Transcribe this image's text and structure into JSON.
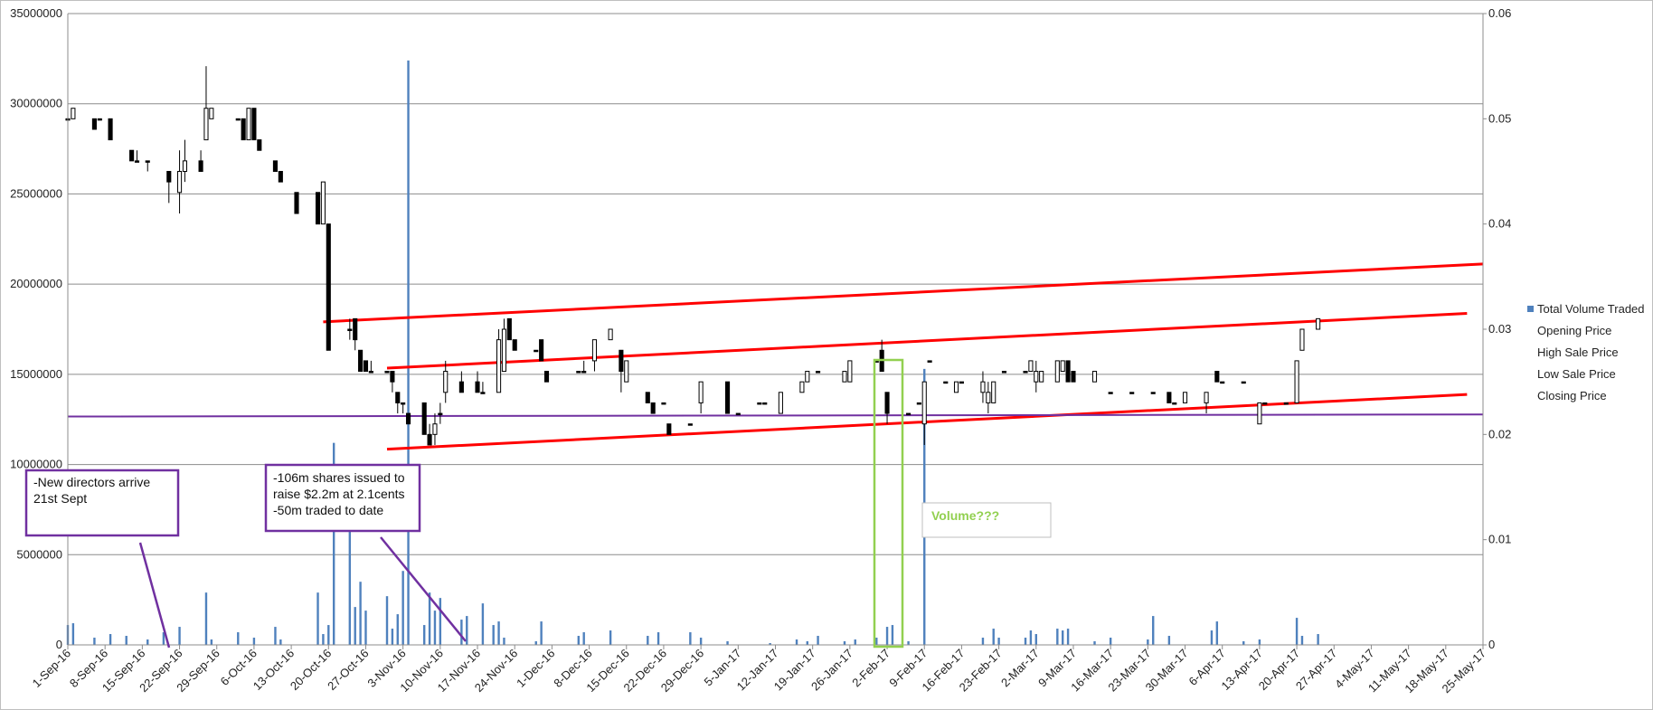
{
  "chart_data": {
    "type": "candlestick",
    "left_axis": {
      "range": [
        0,
        35000000
      ],
      "ticks": [
        "0",
        "5000000",
        "10000000",
        "15000000",
        "20000000",
        "25000000",
        "30000000",
        "35000000"
      ]
    },
    "right_axis": {
      "range": [
        0,
        0.06
      ],
      "ticks": [
        "0",
        "0.01",
        "0.02",
        "0.03",
        "0.04",
        "0.05",
        "0.06"
      ]
    },
    "x_range": [
      "2016-09-01",
      "2017-05-25"
    ],
    "x_tick_labels": [
      "1-Sep-16",
      "8-Sep-16",
      "15-Sep-16",
      "22-Sep-16",
      "29-Sep-16",
      "6-Oct-16",
      "13-Oct-16",
      "20-Oct-16",
      "27-Oct-16",
      "3-Nov-16",
      "10-Nov-16",
      "17-Nov-16",
      "24-Nov-16",
      "1-Dec-16",
      "8-Dec-16",
      "15-Dec-16",
      "22-Dec-16",
      "29-Dec-16",
      "5-Jan-17",
      "12-Jan-17",
      "19-Jan-17",
      "26-Jan-17",
      "2-Feb-17",
      "9-Feb-17",
      "16-Feb-17",
      "23-Feb-17",
      "2-Mar-17",
      "9-Mar-17",
      "16-Mar-17",
      "23-Mar-17",
      "30-Mar-17",
      "6-Apr-17",
      "13-Apr-17",
      "20-Apr-17",
      "27-Apr-17",
      "4-May-17",
      "11-May-17",
      "18-May-17",
      "25-May-17"
    ],
    "grid": true,
    "legend_position": "right",
    "legend": [
      "Total Volume Traded",
      "Opening Price",
      "High Sale Price",
      "Low Sale Price",
      "Closing Price"
    ],
    "colors": {
      "volume": "#4f81bd",
      "trend": "#ff0000",
      "support": "#7030a0",
      "highlight": "#92d050",
      "candle": "#000000"
    },
    "volume": [
      [
        "2016-09-01",
        1100000
      ],
      [
        "2016-09-02",
        1200000
      ],
      [
        "2016-09-06",
        400000
      ],
      [
        "2016-09-09",
        600000
      ],
      [
        "2016-09-12",
        500000
      ],
      [
        "2016-09-16",
        300000
      ],
      [
        "2016-09-19",
        700000
      ],
      [
        "2016-09-22",
        1000000
      ],
      [
        "2016-09-27",
        2900000
      ],
      [
        "2016-09-28",
        300000
      ],
      [
        "2016-10-03",
        700000
      ],
      [
        "2016-10-06",
        400000
      ],
      [
        "2016-10-10",
        1000000
      ],
      [
        "2016-10-11",
        300000
      ],
      [
        "2016-10-18",
        2900000
      ],
      [
        "2016-10-19",
        600000
      ],
      [
        "2016-10-20",
        1100000
      ],
      [
        "2016-10-21",
        11200000
      ],
      [
        "2016-10-24",
        9400000
      ],
      [
        "2016-10-25",
        2100000
      ],
      [
        "2016-10-26",
        3500000
      ],
      [
        "2016-10-27",
        1900000
      ],
      [
        "2016-10-31",
        2700000
      ],
      [
        "2016-11-01",
        900000
      ],
      [
        "2016-11-02",
        1700000
      ],
      [
        "2016-11-03",
        4100000
      ],
      [
        "2016-11-04",
        32400000
      ],
      [
        "2016-11-07",
        1100000
      ],
      [
        "2016-11-08",
        2900000
      ],
      [
        "2016-11-09",
        1900000
      ],
      [
        "2016-11-10",
        2600000
      ],
      [
        "2016-11-14",
        1400000
      ],
      [
        "2016-11-15",
        1600000
      ],
      [
        "2016-11-18",
        2300000
      ],
      [
        "2016-11-20",
        1100000
      ],
      [
        "2016-11-21",
        1300000
      ],
      [
        "2016-11-22",
        400000
      ],
      [
        "2016-11-28",
        200000
      ],
      [
        "2016-11-29",
        1300000
      ],
      [
        "2016-12-06",
        500000
      ],
      [
        "2016-12-07",
        700000
      ],
      [
        "2016-12-12",
        800000
      ],
      [
        "2016-12-19",
        500000
      ],
      [
        "2016-12-21",
        700000
      ],
      [
        "2016-12-27",
        700000
      ],
      [
        "2016-12-29",
        400000
      ],
      [
        "2017-01-03",
        200000
      ],
      [
        "2017-01-11",
        100000
      ],
      [
        "2017-01-16",
        300000
      ],
      [
        "2017-01-18",
        200000
      ],
      [
        "2017-01-20",
        500000
      ],
      [
        "2017-01-25",
        200000
      ],
      [
        "2017-01-27",
        300000
      ],
      [
        "2017-01-31",
        400000
      ],
      [
        "2017-02-02",
        1000000
      ],
      [
        "2017-02-03",
        1100000
      ],
      [
        "2017-02-06",
        200000
      ],
      [
        "2017-02-09",
        15300000
      ],
      [
        "2017-02-20",
        400000
      ],
      [
        "2017-02-22",
        900000
      ],
      [
        "2017-02-23",
        400000
      ],
      [
        "2017-02-28",
        400000
      ],
      [
        "2017-03-01",
        800000
      ],
      [
        "2017-03-02",
        600000
      ],
      [
        "2017-03-06",
        900000
      ],
      [
        "2017-03-07",
        800000
      ],
      [
        "2017-03-08",
        900000
      ],
      [
        "2017-03-13",
        200000
      ],
      [
        "2017-03-16",
        400000
      ],
      [
        "2017-03-23",
        300000
      ],
      [
        "2017-03-24",
        1600000
      ],
      [
        "2017-03-27",
        500000
      ],
      [
        "2017-04-04",
        800000
      ],
      [
        "2017-04-05",
        1300000
      ],
      [
        "2017-04-10",
        200000
      ],
      [
        "2017-04-13",
        300000
      ],
      [
        "2017-04-20",
        1500000
      ],
      [
        "2017-04-21",
        500000
      ],
      [
        "2017-04-24",
        600000
      ]
    ],
    "candles": [
      [
        "2016-09-01",
        0.05,
        0.051,
        0.048,
        0.05
      ],
      [
        "2016-09-02",
        0.05,
        0.051,
        0.05,
        0.051
      ],
      [
        "2016-09-06",
        0.05,
        0.05,
        0.049,
        0.049
      ],
      [
        "2016-09-07",
        0.05,
        0.05,
        0.05,
        0.05
      ],
      [
        "2016-09-09",
        0.05,
        0.05,
        0.048,
        0.048
      ],
      [
        "2016-09-13",
        0.047,
        0.047,
        0.046,
        0.046
      ],
      [
        "2016-09-14",
        0.046,
        0.047,
        0.046,
        0.046
      ],
      [
        "2016-09-16",
        0.046,
        0.046,
        0.045,
        0.046
      ],
      [
        "2016-09-20",
        0.045,
        0.045,
        0.042,
        0.044
      ],
      [
        "2016-09-22",
        0.043,
        0.047,
        0.041,
        0.045
      ],
      [
        "2016-09-23",
        0.045,
        0.048,
        0.044,
        0.046
      ],
      [
        "2016-09-26",
        0.046,
        0.047,
        0.045,
        0.045
      ],
      [
        "2016-09-27",
        0.048,
        0.055,
        0.048,
        0.051
      ],
      [
        "2016-09-28",
        0.05,
        0.051,
        0.05,
        0.051
      ],
      [
        "2016-10-03",
        0.05,
        0.05,
        0.05,
        0.05
      ],
      [
        "2016-10-04",
        0.05,
        0.05,
        0.048,
        0.048
      ],
      [
        "2016-10-05",
        0.048,
        0.051,
        0.048,
        0.051
      ],
      [
        "2016-10-06",
        0.051,
        0.051,
        0.048,
        0.048
      ],
      [
        "2016-10-07",
        0.048,
        0.048,
        0.047,
        0.047
      ],
      [
        "2016-10-10",
        0.046,
        0.046,
        0.045,
        0.045
      ],
      [
        "2016-10-11",
        0.045,
        0.045,
        0.044,
        0.044
      ],
      [
        "2016-10-14",
        0.043,
        0.043,
        0.041,
        0.041
      ],
      [
        "2016-10-18",
        0.043,
        0.043,
        0.04,
        0.04
      ],
      [
        "2016-10-19",
        0.04,
        0.044,
        0.04,
        0.044
      ],
      [
        "2016-10-20",
        0.04,
        0.04,
        0.028,
        0.028
      ],
      [
        "2016-10-24",
        0.03,
        0.031,
        0.029,
        0.03
      ],
      [
        "2016-10-25",
        0.031,
        0.031,
        0.028,
        0.029
      ],
      [
        "2016-10-26",
        0.028,
        0.028,
        0.026,
        0.026
      ],
      [
        "2016-10-27",
        0.027,
        0.027,
        0.026,
        0.026
      ],
      [
        "2016-10-28",
        0.026,
        0.027,
        0.026,
        0.026
      ],
      [
        "2016-10-31",
        0.026,
        0.026,
        0.026,
        0.026
      ],
      [
        "2016-11-01",
        0.026,
        0.026,
        0.024,
        0.025
      ],
      [
        "2016-11-02",
        0.024,
        0.024,
        0.022,
        0.023
      ],
      [
        "2016-11-03",
        0.023,
        0.023,
        0.022,
        0.023
      ],
      [
        "2016-11-04",
        0.022,
        0.022,
        0.021,
        0.021
      ],
      [
        "2016-11-07",
        0.023,
        0.023,
        0.02,
        0.02
      ],
      [
        "2016-11-08",
        0.02,
        0.021,
        0.019,
        0.019
      ],
      [
        "2016-11-09",
        0.02,
        0.022,
        0.019,
        0.021
      ],
      [
        "2016-11-10",
        0.022,
        0.023,
        0.021,
        0.022
      ],
      [
        "2016-11-11",
        0.024,
        0.027,
        0.023,
        0.026
      ],
      [
        "2016-11-14",
        0.025,
        0.026,
        0.024,
        0.024
      ],
      [
        "2016-11-17",
        0.025,
        0.026,
        0.024,
        0.024
      ],
      [
        "2016-11-18",
        0.024,
        0.025,
        0.024,
        0.024
      ],
      [
        "2016-11-21",
        0.024,
        0.03,
        0.024,
        0.029
      ],
      [
        "2016-11-22",
        0.026,
        0.031,
        0.026,
        0.03
      ],
      [
        "2016-11-23",
        0.031,
        0.031,
        0.029,
        0.029
      ],
      [
        "2016-11-24",
        0.029,
        0.029,
        0.028,
        0.028
      ],
      [
        "2016-11-28",
        0.028,
        0.028,
        0.028,
        0.028
      ],
      [
        "2016-11-29",
        0.029,
        0.029,
        0.027,
        0.027
      ],
      [
        "2016-11-30",
        0.026,
        0.026,
        0.025,
        0.025
      ],
      [
        "2016-12-06",
        0.026,
        0.026,
        0.026,
        0.026
      ],
      [
        "2016-12-07",
        0.026,
        0.027,
        0.026,
        0.026
      ],
      [
        "2016-12-09",
        0.027,
        0.029,
        0.026,
        0.029
      ],
      [
        "2016-12-12",
        0.029,
        0.03,
        0.029,
        0.03
      ],
      [
        "2016-12-14",
        0.028,
        0.028,
        0.024,
        0.026
      ],
      [
        "2016-12-15",
        0.025,
        0.027,
        0.025,
        0.027
      ],
      [
        "2016-12-19",
        0.024,
        0.024,
        0.023,
        0.023
      ],
      [
        "2016-12-20",
        0.023,
        0.023,
        0.022,
        0.022
      ],
      [
        "2016-12-22",
        0.023,
        0.023,
        0.023,
        0.023
      ],
      [
        "2016-12-23",
        0.021,
        0.021,
        0.02,
        0.02
      ],
      [
        "2016-12-27",
        0.021,
        0.021,
        0.021,
        0.021
      ],
      [
        "2016-12-29",
        0.023,
        0.025,
        0.022,
        0.025
      ],
      [
        "2017-01-03",
        0.025,
        0.025,
        0.022,
        0.022
      ],
      [
        "2017-01-05",
        0.022,
        0.022,
        0.022,
        0.022
      ],
      [
        "2017-01-09",
        0.023,
        0.023,
        0.023,
        0.023
      ],
      [
        "2017-01-10",
        0.023,
        0.023,
        0.023,
        0.023
      ],
      [
        "2017-01-13",
        0.022,
        0.024,
        0.022,
        0.024
      ],
      [
        "2017-01-17",
        0.024,
        0.025,
        0.024,
        0.025
      ],
      [
        "2017-01-18",
        0.025,
        0.026,
        0.025,
        0.026
      ],
      [
        "2017-01-20",
        0.026,
        0.026,
        0.026,
        0.026
      ],
      [
        "2017-01-25",
        0.025,
        0.026,
        0.025,
        0.026
      ],
      [
        "2017-01-26",
        0.025,
        0.027,
        0.025,
        0.027
      ],
      [
        "2017-01-31",
        0.027,
        0.027,
        0.027,
        0.027
      ],
      [
        "2017-02-01",
        0.028,
        0.029,
        0.026,
        0.026
      ],
      [
        "2017-02-02",
        0.024,
        0.024,
        0.021,
        0.022
      ],
      [
        "2017-02-06",
        0.022,
        0.022,
        0.022,
        0.022
      ],
      [
        "2017-02-08",
        0.023,
        0.023,
        0.023,
        0.023
      ],
      [
        "2017-02-09",
        0.021,
        0.025,
        0.019,
        0.025
      ],
      [
        "2017-02-10",
        0.027,
        0.027,
        0.027,
        0.027
      ],
      [
        "2017-02-13",
        0.025,
        0.025,
        0.025,
        0.025
      ],
      [
        "2017-02-15",
        0.024,
        0.025,
        0.024,
        0.025
      ],
      [
        "2017-02-16",
        0.025,
        0.025,
        0.025,
        0.025
      ],
      [
        "2017-02-20",
        0.024,
        0.026,
        0.023,
        0.025
      ],
      [
        "2017-02-21",
        0.023,
        0.025,
        0.022,
        0.024
      ],
      [
        "2017-02-22",
        0.023,
        0.025,
        0.023,
        0.025
      ],
      [
        "2017-02-24",
        0.026,
        0.026,
        0.026,
        0.026
      ],
      [
        "2017-02-28",
        0.026,
        0.026,
        0.026,
        0.026
      ],
      [
        "2017-03-01",
        0.026,
        0.027,
        0.026,
        0.027
      ],
      [
        "2017-03-02",
        0.025,
        0.027,
        0.024,
        0.026
      ],
      [
        "2017-03-03",
        0.025,
        0.026,
        0.025,
        0.026
      ],
      [
        "2017-03-06",
        0.025,
        0.027,
        0.025,
        0.027
      ],
      [
        "2017-03-07",
        0.026,
        0.027,
        0.026,
        0.027
      ],
      [
        "2017-03-08",
        0.027,
        0.027,
        0.025,
        0.025
      ],
      [
        "2017-03-09",
        0.026,
        0.026,
        0.025,
        0.025
      ],
      [
        "2017-03-13",
        0.025,
        0.026,
        0.025,
        0.026
      ],
      [
        "2017-03-16",
        0.024,
        0.024,
        0.024,
        0.024
      ],
      [
        "2017-03-20",
        0.024,
        0.024,
        0.024,
        0.024
      ],
      [
        "2017-03-24",
        0.024,
        0.024,
        0.024,
        0.024
      ],
      [
        "2017-03-27",
        0.024,
        0.024,
        0.023,
        0.023
      ],
      [
        "2017-03-28",
        0.023,
        0.023,
        0.023,
        0.023
      ],
      [
        "2017-03-30",
        0.023,
        0.024,
        0.023,
        0.024
      ],
      [
        "2017-04-03",
        0.023,
        0.024,
        0.022,
        0.024
      ],
      [
        "2017-04-05",
        0.026,
        0.026,
        0.025,
        0.025
      ],
      [
        "2017-04-06",
        0.025,
        0.025,
        0.025,
        0.025
      ],
      [
        "2017-04-10",
        0.025,
        0.025,
        0.025,
        0.025
      ],
      [
        "2017-04-13",
        0.021,
        0.023,
        0.021,
        0.023
      ],
      [
        "2017-04-14",
        0.023,
        0.023,
        0.023,
        0.023
      ],
      [
        "2017-04-18",
        0.023,
        0.023,
        0.023,
        0.023
      ],
      [
        "2017-04-20",
        0.023,
        0.027,
        0.023,
        0.027
      ],
      [
        "2017-04-21",
        0.028,
        0.03,
        0.028,
        0.03
      ],
      [
        "2017-04-24",
        0.03,
        0.031,
        0.03,
        0.031
      ]
    ],
    "trendlines": [
      {
        "name": "upper-channel",
        "from": [
          "2016-10-19",
          0.0307
        ],
        "to": [
          "2017-05-25",
          0.0362
        ],
        "color": "#ff0000"
      },
      {
        "name": "middle-channel",
        "from": [
          "2016-10-31",
          0.0263
        ],
        "to": [
          "2017-05-22",
          0.0315
        ],
        "color": "#ff0000"
      },
      {
        "name": "lower-channel",
        "from": [
          "2016-10-31",
          0.0186
        ],
        "to": [
          "2017-05-22",
          0.0238
        ],
        "color": "#ff0000"
      },
      {
        "name": "support",
        "from": [
          "2016-09-01",
          0.0217
        ],
        "to": [
          "2017-05-25",
          0.0219
        ],
        "color": "#7030a0"
      }
    ],
    "annotations": {
      "directors": [
        "-New directors arrive",
        "21st Sept"
      ],
      "shares": [
        "-106m shares issued to",
        "raise $2.2m at 2.1cents",
        "-50m traded to date"
      ],
      "volume_note": "Volume???"
    }
  }
}
